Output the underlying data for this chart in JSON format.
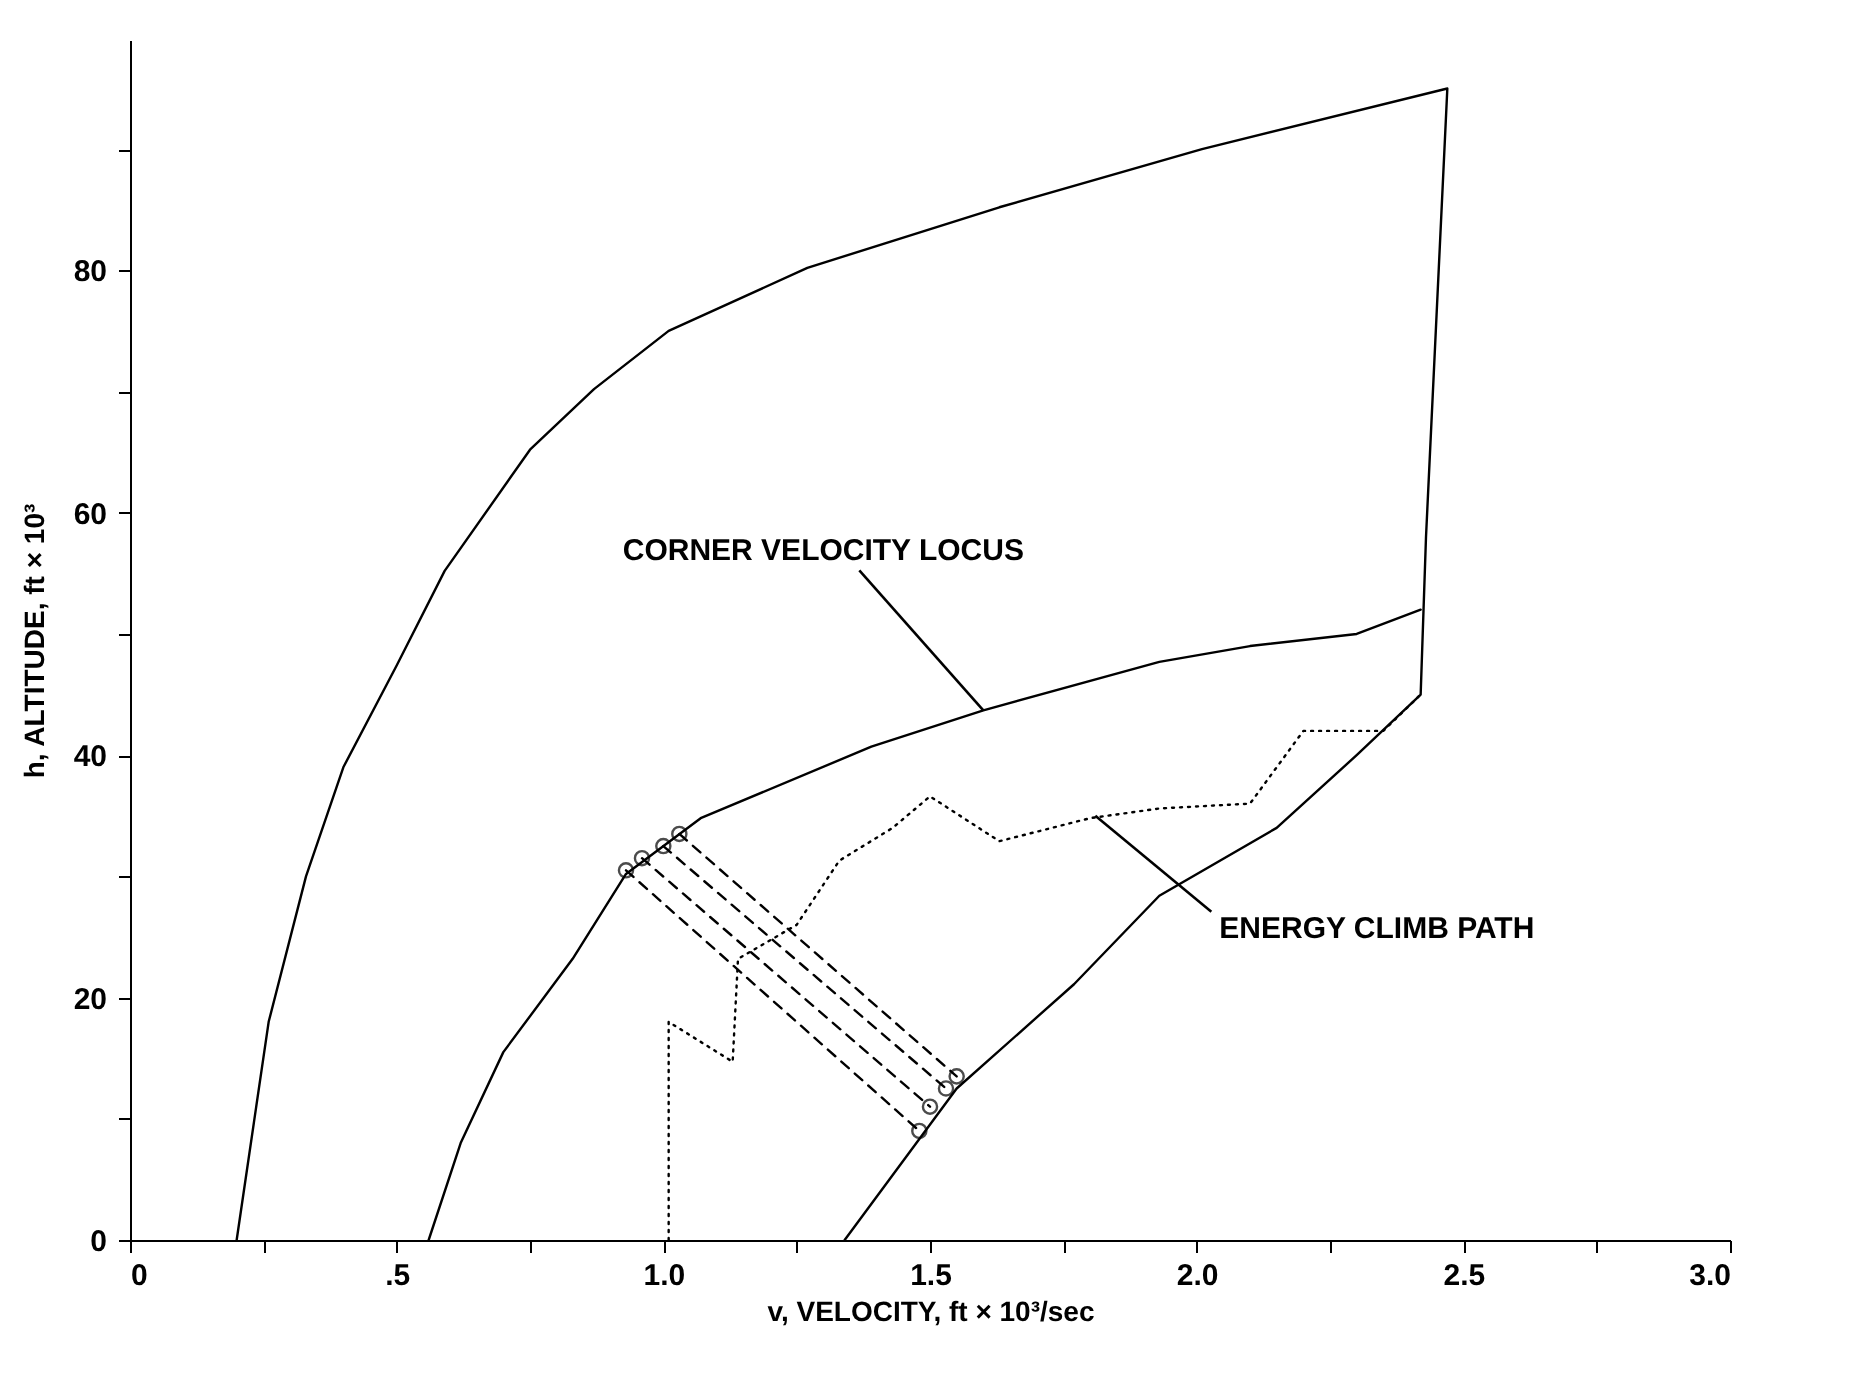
{
  "chart_data": {
    "type": "line",
    "xlabel": "v, VELOCITY, ft × 10³/sec",
    "ylabel": "h, ALTITUDE, ft × 10³",
    "xlim": [
      0,
      3.0
    ],
    "ylim": [
      0,
      99
    ],
    "xticks": [
      0,
      {
        "value": 0.25,
        "label": null
      },
      {
        "value": 0.5,
        "label": ".5"
      },
      {
        "value": 0.75,
        "label": null
      },
      {
        "value": 1.0,
        "label": "1.0"
      },
      {
        "value": 1.25,
        "label": null
      },
      1.5,
      {
        "value": 1.75,
        "label": null
      },
      {
        "value": 2.0,
        "label": "2.0"
      },
      {
        "value": 2.25,
        "label": null
      },
      2.5,
      {
        "value": 2.75,
        "label": null
      },
      {
        "value": 3.0,
        "label": "3.0"
      }
    ],
    "yticks": [
      0,
      {
        "value": 10,
        "label": null
      },
      20,
      {
        "value": 30,
        "label": null
      },
      40,
      {
        "value": 50,
        "label": null
      },
      60,
      {
        "value": 70,
        "label": null
      },
      80,
      {
        "value": 90,
        "label": null
      }
    ],
    "grid": false,
    "series": [
      {
        "color": "#000000",
        "line_style": "solid",
        "marker": "none",
        "x": [
          0.2,
          0.26,
          0.33,
          0.4,
          0.5,
          0.59,
          0.75,
          0.87,
          1.01,
          1.27,
          1.63,
          2.01,
          2.47,
          2.43,
          2.42,
          2.3,
          2.15,
          1.93,
          1.77,
          1.55,
          1.34
        ],
        "values": [
          0,
          18,
          30,
          39,
          47.4,
          55.2,
          65.2,
          70.2,
          75,
          80.2,
          85.2,
          90,
          95,
          58,
          45,
          40,
          34,
          28.4,
          21.1,
          12.5,
          0
        ]
      },
      {
        "color": "#000000",
        "line_style": "solid",
        "marker": "none",
        "x": [
          0.56,
          0.62,
          0.7,
          0.83,
          0.93,
          1.07,
          1.39,
          1.6,
          1.93,
          2.1,
          2.3,
          2.42
        ],
        "values": [
          0,
          8,
          15.5,
          23.2,
          30.2,
          34.8,
          40.7,
          43.7,
          47.7,
          49,
          50,
          52
        ]
      },
      {
        "color": "#000000",
        "line_style": "dotted",
        "marker": "none",
        "x": [
          1.01,
          1.01,
          1.13,
          1.14,
          1.25,
          1.33,
          1.43,
          1.5,
          1.63,
          1.8,
          1.93,
          2.1,
          2.2,
          2.35,
          2.42
        ],
        "values": [
          0,
          18,
          14.7,
          23.2,
          26,
          31.3,
          34,
          36.6,
          32.9,
          34.8,
          35.6,
          36,
          42,
          42,
          45
        ]
      },
      {
        "color": "#000000",
        "line_style": "dashed",
        "marker": "circle",
        "x": [
          0.93,
          1.48
        ],
        "values": [
          30.5,
          9
        ]
      },
      {
        "color": "#000000",
        "line_style": "dashed",
        "marker": "circle",
        "x": [
          0.96,
          1.5
        ],
        "values": [
          31.5,
          11
        ]
      },
      {
        "color": "#000000",
        "line_style": "dashed",
        "marker": "circle",
        "x": [
          1.0,
          1.53
        ],
        "values": [
          32.5,
          12.5
        ]
      },
      {
        "color": "#000000",
        "line_style": "dashed",
        "marker": "circle",
        "x": [
          1.03,
          1.55
        ],
        "values": [
          33.5,
          13.5
        ]
      }
    ],
    "annotations": [
      {
        "text": "CORNER VELOCITY LOCUS",
        "x": 1.6,
        "y": 43.7
      },
      {
        "text": "ENERGY CLIMB PATH",
        "x": 1.81,
        "y": 35
      }
    ]
  }
}
